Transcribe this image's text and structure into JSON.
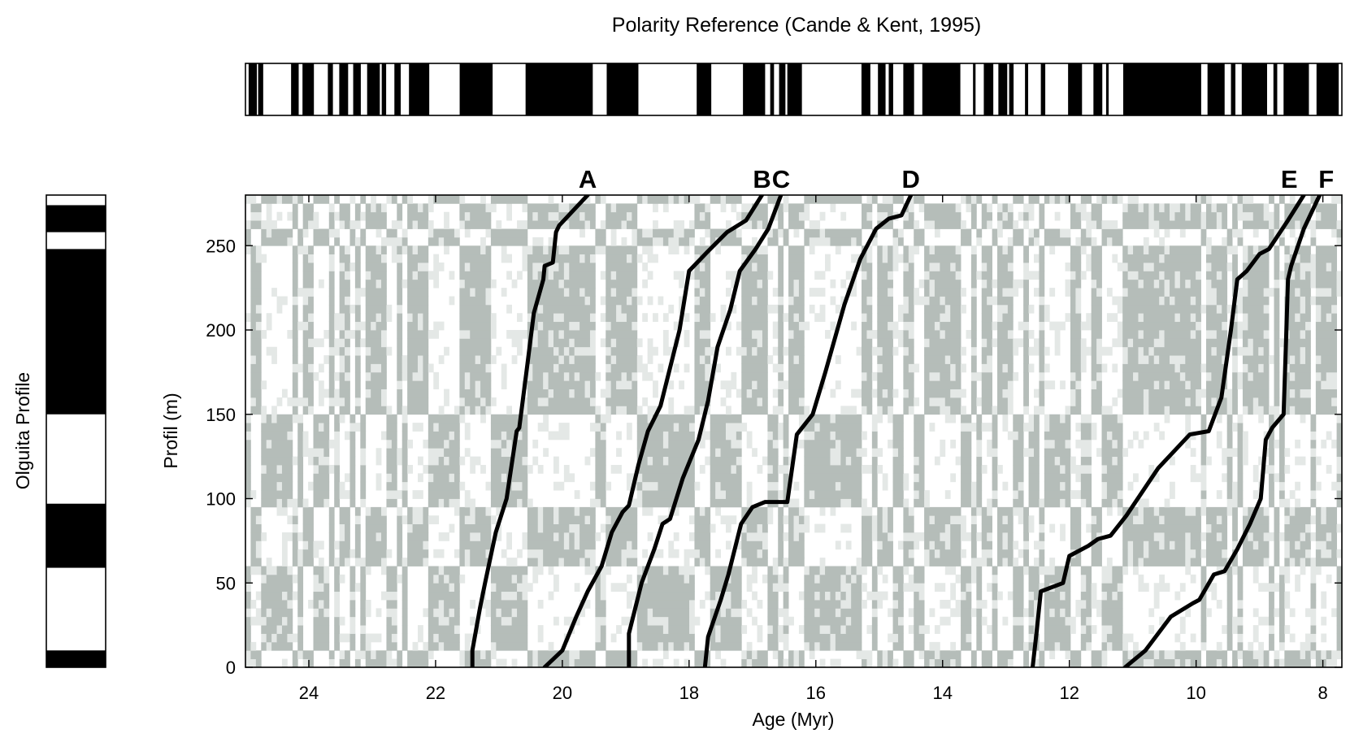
{
  "chart_data": {
    "type": "line",
    "title": "Polarity Reference (Cande & Kent, 1995)",
    "xlabel": "Age (Myr)",
    "ylabel": "Profil (m)",
    "side_label": "Olguita Profile",
    "xlim": [
      25.0,
      7.7
    ],
    "ylim": [
      0,
      280
    ],
    "x_ticks": [
      24,
      22,
      20,
      18,
      16,
      14,
      12,
      10,
      8
    ],
    "y_ticks": [
      0,
      50,
      100,
      150,
      200,
      250
    ],
    "grid": false,
    "colors": {
      "line": "#000000",
      "shade_dark": "#b5bdb9",
      "shade_light": "#e4e8e6",
      "bar": "#000000"
    },
    "reference_normal_intervals_myr": [
      [
        24.95,
        24.82
      ],
      [
        24.8,
        24.72
      ],
      [
        24.28,
        24.16
      ],
      [
        24.1,
        23.92
      ],
      [
        23.7,
        23.62
      ],
      [
        23.52,
        23.38
      ],
      [
        23.3,
        23.18
      ],
      [
        23.08,
        22.88
      ],
      [
        22.85,
        22.78
      ],
      [
        22.65,
        22.55
      ],
      [
        22.42,
        22.1
      ],
      [
        21.62,
        21.1
      ],
      [
        20.58,
        19.52
      ],
      [
        19.3,
        18.8
      ],
      [
        17.88,
        17.65
      ],
      [
        17.15,
        16.8
      ],
      [
        16.72,
        16.66
      ],
      [
        16.58,
        16.48
      ],
      [
        16.45,
        16.22
      ],
      [
        15.28,
        15.14
      ],
      [
        15.02,
        14.9
      ],
      [
        14.85,
        14.78
      ],
      [
        14.62,
        14.45
      ],
      [
        14.32,
        13.72
      ],
      [
        13.52,
        13.48
      ],
      [
        13.35,
        13.2
      ],
      [
        13.12,
        12.98
      ],
      [
        12.95,
        12.88
      ],
      [
        12.7,
        12.65
      ],
      [
        12.45,
        12.38
      ],
      [
        12.02,
        11.8
      ],
      [
        11.62,
        11.48
      ],
      [
        11.42,
        11.38
      ],
      [
        11.15,
        9.92
      ],
      [
        9.82,
        9.55
      ],
      [
        9.45,
        9.38
      ],
      [
        9.28,
        8.88
      ],
      [
        8.78,
        8.72
      ],
      [
        8.62,
        8.22
      ],
      [
        8.1,
        7.75
      ]
    ],
    "olguita_normal_intervals_m": [
      [
        0,
        10
      ],
      [
        59,
        97
      ],
      [
        150,
        248
      ],
      [
        258,
        274
      ]
    ],
    "series": [
      {
        "name": "A",
        "x": [
          21.42,
          21.42,
          21.3,
          21.22,
          21.05,
          20.88,
          20.72,
          20.68,
          20.55,
          20.45,
          20.3,
          20.28,
          20.15,
          20.1,
          20.05,
          19.6
        ],
        "y": [
          0,
          10,
          35,
          50,
          80,
          100,
          140,
          142,
          180,
          210,
          230,
          238,
          240,
          258,
          262,
          280
        ]
      },
      {
        "name": "B",
        "x": [
          20.28,
          20.0,
          19.78,
          19.6,
          19.38,
          19.22,
          19.05,
          18.95,
          18.8,
          18.65,
          18.45,
          18.15,
          18.0,
          17.72,
          17.4,
          17.1,
          16.85
        ],
        "y": [
          0,
          10,
          30,
          45,
          60,
          80,
          92,
          96,
          120,
          140,
          155,
          200,
          235,
          246,
          258,
          265,
          280
        ]
      },
      {
        "name": "C",
        "x": [
          18.95,
          18.95,
          18.85,
          18.75,
          18.55,
          18.42,
          18.3,
          18.1,
          17.85,
          17.7,
          17.55,
          17.35,
          17.2,
          16.95,
          16.75,
          16.65,
          16.55
        ],
        "y": [
          0,
          20,
          35,
          50,
          70,
          85,
          88,
          112,
          135,
          158,
          190,
          212,
          235,
          248,
          260,
          270,
          280
        ]
      },
      {
        "name": "D",
        "x": [
          17.75,
          17.7,
          17.5,
          17.38,
          17.18,
          17.0,
          16.8,
          16.45,
          16.3,
          16.05,
          15.85,
          15.55,
          15.3,
          15.05,
          14.85,
          14.65,
          14.5
        ],
        "y": [
          0,
          18,
          40,
          55,
          85,
          95,
          98,
          98,
          138,
          150,
          175,
          215,
          242,
          260,
          266,
          268,
          280
        ]
      },
      {
        "name": "E",
        "x": [
          12.58,
          12.52,
          12.45,
          12.1,
          12.0,
          11.7,
          11.55,
          11.35,
          11.1,
          10.6,
          10.1,
          9.8,
          9.6,
          9.45,
          9.35,
          9.2,
          9.0,
          8.85,
          8.55,
          8.3
        ],
        "y": [
          0,
          20,
          45,
          50,
          66,
          72,
          76,
          78,
          90,
          118,
          138,
          140,
          160,
          200,
          230,
          235,
          245,
          248,
          265,
          280
        ]
      },
      {
        "name": "F",
        "x": [
          11.12,
          10.8,
          10.4,
          10.05,
          9.95,
          9.72,
          9.55,
          9.35,
          9.15,
          8.98,
          8.9,
          8.8,
          8.62,
          8.58,
          8.55,
          8.5,
          8.3,
          8.05
        ],
        "y": [
          0,
          10,
          30,
          38,
          40,
          55,
          57,
          70,
          85,
          100,
          135,
          142,
          150,
          195,
          230,
          238,
          260,
          280
        ]
      }
    ],
    "annotations": [
      "A",
      "B",
      "C",
      "D",
      "E",
      "F"
    ]
  }
}
